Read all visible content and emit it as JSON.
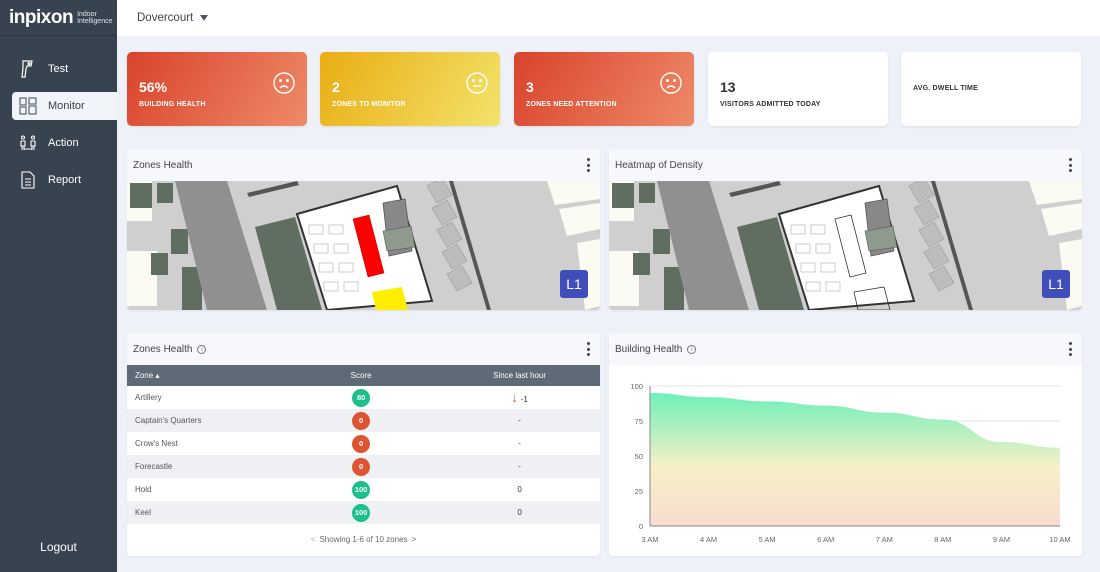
{
  "sidebar": {
    "logo": {
      "brand": "inpixon",
      "tagline_1": "Indoor",
      "tagline_2": "Intelligence"
    },
    "items": [
      {
        "label": "Test",
        "icon": "thermometer-gun-icon"
      },
      {
        "label": "Monitor",
        "icon": "dashboard-grid-icon",
        "active": true
      },
      {
        "label": "Action",
        "icon": "people-distance-icon"
      },
      {
        "label": "Report",
        "icon": "document-icon"
      }
    ],
    "logout": "Logout"
  },
  "header": {
    "location": "Dovercourt"
  },
  "kpis": [
    {
      "value": "56%",
      "label": "BUILDING HEALTH",
      "face": "sad",
      "color": "#d9492f"
    },
    {
      "value": "2",
      "label": "ZONES TO MONITOR",
      "face": "neutral",
      "color": "#eab51f"
    },
    {
      "value": "3",
      "label": "ZONES NEED ATTENTION",
      "face": "sad",
      "color": "#d9492f"
    },
    {
      "value": "13",
      "label": "VISITORS ADMITTED TODAY"
    },
    {
      "value": "",
      "label": "AVG. DWELL TIME"
    }
  ],
  "maps": [
    {
      "title": "Zones Health",
      "floor": "L1",
      "zones": {
        "red": "#ff0000",
        "yellow": "#ffee00"
      }
    },
    {
      "title": "Heatmap of Density",
      "floor": "L1"
    }
  ],
  "zones_table": {
    "title": "Zones Health",
    "columns": [
      "Zone ▴",
      "Score",
      "Since last hour"
    ],
    "rows": [
      {
        "zone": "Artillery",
        "score": "80",
        "status": "good",
        "change": "-1",
        "trend": "down"
      },
      {
        "zone": "Captain's Quarters",
        "score": "0",
        "status": "bad",
        "change": "-"
      },
      {
        "zone": "Crow's Nest",
        "score": "0",
        "status": "bad",
        "change": "-"
      },
      {
        "zone": "Forecastle",
        "score": "0",
        "status": "bad",
        "change": "-"
      },
      {
        "zone": "Hold",
        "score": "100",
        "status": "good",
        "change": "0"
      },
      {
        "zone": "Keel",
        "score": "100",
        "status": "good",
        "change": "0"
      }
    ],
    "pager": "Showing 1-6 of 10 zones",
    "prev": "<",
    "next": ">"
  },
  "chart_data": {
    "type": "area",
    "title": "Building Health",
    "categories": [
      "3 AM",
      "4 AM",
      "5 AM",
      "6 AM",
      "7 AM",
      "8 AM",
      "9 AM",
      "10 AM"
    ],
    "values": [
      95,
      92,
      89,
      86,
      81,
      76,
      60,
      56
    ],
    "ylim": [
      0,
      100
    ],
    "yticks": [
      0,
      25,
      50,
      75,
      100
    ],
    "grid": true,
    "gradient": {
      "high": "#6ef0b8",
      "mid": "#f6f0c8",
      "low": "#f9dcd0"
    }
  },
  "colors": {
    "good": "#1dbf8a",
    "bad": "#dd5432",
    "sidebar": "#37434f"
  }
}
